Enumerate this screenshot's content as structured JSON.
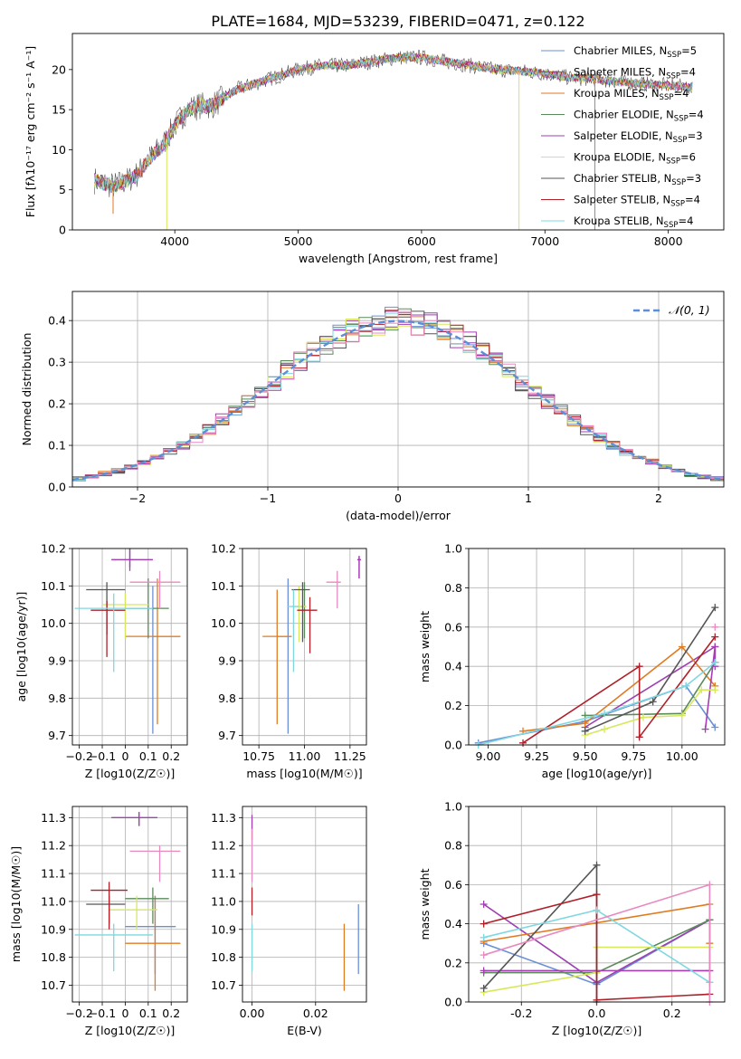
{
  "figure_title": "PLATE=1684, MJD=53239, FIBERID=0471, z=0.122",
  "series_colors": [
    "#6b8fd6",
    "#9e3fb0",
    "#e07b22",
    "#5a8a5a",
    "#a63db5",
    "#d7e85a",
    "#555555",
    "#b01f28",
    "#7fd8e0",
    "#e88ac0"
  ],
  "chart_data": [
    {
      "id": "spectrum",
      "type": "line",
      "title": "PLATE=1684, MJD=53239, FIBERID=0471, z=0.122",
      "xlabel": "wavelength [Angstrom, rest frame]",
      "ylabel": "Flux [fλ10⁻¹⁷ erg cm⁻² s⁻¹ A⁻¹]",
      "xlim": [
        3170,
        8450
      ],
      "ylim": [
        0,
        24.5
      ],
      "xticks": [
        4000,
        5000,
        6000,
        7000,
        8000
      ],
      "yticks": [
        0,
        5,
        10,
        15,
        20
      ],
      "grid": false,
      "legend_position": "right",
      "legend": [
        "Chabrier MILES, N_SSP=5",
        "Salpeter MILES, N_SSP=4",
        "Kroupa MILES, N_SSP=4",
        "Chabrier ELODIE, N_SSP=4",
        "Salpeter ELODIE, N_SSP=3",
        "Kroupa ELODIE, N_SSP=6",
        "Chabrier STELIB, N_SSP=3",
        "Salpeter STELIB, N_SSP=4",
        "Kroupa STELIB, N_SSP=4"
      ],
      "continuum": {
        "x": [
          3350,
          3500,
          3600,
          3700,
          3800,
          3900,
          4000,
          4100,
          4200,
          4300,
          4400,
          4500,
          4600,
          4700,
          4800,
          4900,
          5000,
          5200,
          5400,
          5600,
          5800,
          6000,
          6200,
          6400,
          6600,
          6800,
          7000,
          7200,
          7400,
          7600,
          7800,
          8000,
          8200
        ],
        "y": [
          6.2,
          5.5,
          6.0,
          7.0,
          9.0,
          10.5,
          13.0,
          15.0,
          15.5,
          15.5,
          16.5,
          17.5,
          18.0,
          18.5,
          19.0,
          19.5,
          20.0,
          20.5,
          20.5,
          21.0,
          21.5,
          21.5,
          21.0,
          20.5,
          20.0,
          19.8,
          19.5,
          19.0,
          18.8,
          18.5,
          18.2,
          18.0,
          17.8
        ]
      }
    },
    {
      "id": "residuals",
      "type": "histogram",
      "xlabel": "(data-model)/error",
      "ylabel": "Normed distribution",
      "xlim": [
        -2.5,
        2.5
      ],
      "ylim": [
        0,
        0.47
      ],
      "xticks": [
        -2,
        -1,
        0,
        1,
        2
      ],
      "yticks": [
        0.0,
        0.1,
        0.2,
        0.3,
        0.4
      ],
      "grid": true,
      "legend": [
        "𝒩(0, 1)"
      ],
      "legend_position": "top-right",
      "bin_width": 0.1
    },
    {
      "id": "age_vs_Z",
      "type": "errorbar",
      "xlabel": "Z [log10(Z/Z☉)]",
      "ylabel": "age [log10(age/yr)]",
      "xlim": [
        -0.23,
        0.27
      ],
      "ylim": [
        9.675,
        10.2
      ],
      "xticks": [
        -0.2,
        -0.1,
        0.0,
        0.1,
        0.2
      ],
      "yticks": [
        9.7,
        9.8,
        9.9,
        10.0,
        10.1,
        10.2
      ],
      "grid": true,
      "points": [
        {
          "x": 0.12,
          "y": 9.965,
          "xl": 0.12,
          "xh": 0.24,
          "yl": 9.705,
          "yh": 10.1
        },
        {
          "x": 0.02,
          "y": 10.17,
          "xl": -0.06,
          "xh": 0.12,
          "yl": 10.15,
          "yh": 10.2
        },
        {
          "x": 0.14,
          "y": 9.965,
          "xl": 0.0,
          "xh": 0.24,
          "yl": 9.73,
          "yh": 10.12
        },
        {
          "x": 0.1,
          "y": 10.04,
          "xl": 0.0,
          "xh": 0.19,
          "yl": 9.96,
          "yh": 10.12
        },
        {
          "x": 0.02,
          "y": 10.17,
          "xl": -0.06,
          "xh": 0.12,
          "yl": 10.14,
          "yh": 10.2
        },
        {
          "x": 0.0,
          "y": 10.05,
          "xl": -0.1,
          "xh": 0.1,
          "yl": 9.96,
          "yh": 10.08
        },
        {
          "x": -0.08,
          "y": 10.09,
          "xl": -0.17,
          "xh": 0.0,
          "yl": 9.97,
          "yh": 10.11
        },
        {
          "x": -0.08,
          "y": 10.035,
          "xl": -0.15,
          "xh": 0.0,
          "yl": 9.91,
          "yh": 10.06
        },
        {
          "x": -0.05,
          "y": 10.04,
          "xl": -0.22,
          "xh": 0.12,
          "yl": 9.87,
          "yh": 10.08
        },
        {
          "x": 0.15,
          "y": 10.11,
          "xl": 0.02,
          "xh": 0.24,
          "yl": 10.04,
          "yh": 10.14
        }
      ]
    },
    {
      "id": "age_vs_mass",
      "type": "errorbar",
      "xlabel": "mass [log10(M/M☉)]",
      "ylabel": "",
      "xlim": [
        10.66,
        11.34
      ],
      "ylim": [
        9.675,
        10.2
      ],
      "xticks": [
        10.75,
        11.0,
        11.25
      ],
      "yticks": [
        9.7,
        9.8,
        9.9,
        10.0,
        10.1,
        10.2
      ],
      "grid": true,
      "points": [
        {
          "x": 10.91,
          "y": 9.965,
          "xl": 10.85,
          "xh": 10.93,
          "yl": 9.705,
          "yh": 10.12
        },
        {
          "x": 11.3,
          "y": 10.17,
          "xl": 11.29,
          "xh": 11.31,
          "yl": 10.12,
          "yh": 10.18
        },
        {
          "x": 10.85,
          "y": 9.965,
          "xl": 10.77,
          "xh": 10.93,
          "yl": 9.73,
          "yh": 10.09
        },
        {
          "x": 11.0,
          "y": 10.045,
          "xl": 10.98,
          "xh": 11.01,
          "yl": 9.96,
          "yh": 10.11
        },
        {
          "x": 11.3,
          "y": 10.17,
          "xl": 11.29,
          "xh": 11.31,
          "yl": 10.12,
          "yh": 10.18
        },
        {
          "x": 10.97,
          "y": 10.045,
          "xl": 10.93,
          "xh": 11.01,
          "yl": 9.95,
          "yh": 10.1
        },
        {
          "x": 10.99,
          "y": 10.09,
          "xl": 10.93,
          "xh": 11.03,
          "yl": 9.95,
          "yh": 10.11
        },
        {
          "x": 11.03,
          "y": 10.035,
          "xl": 10.96,
          "xh": 11.07,
          "yl": 9.92,
          "yh": 10.07
        },
        {
          "x": 10.94,
          "y": 10.045,
          "xl": 10.91,
          "xh": 10.97,
          "yl": 9.87,
          "yh": 10.09
        },
        {
          "x": 11.18,
          "y": 10.11,
          "xl": 11.12,
          "xh": 11.2,
          "yl": 10.04,
          "yh": 10.14
        }
      ]
    },
    {
      "id": "massweight_vs_age",
      "type": "line",
      "xlabel": "age [log10(age/yr)]",
      "ylabel": "mass weight",
      "xlim": [
        8.9,
        10.22
      ],
      "ylim": [
        0,
        1
      ],
      "xticks": [
        9.0,
        9.25,
        9.5,
        9.75,
        10.0
      ],
      "yticks": [
        0.0,
        0.2,
        0.4,
        0.6,
        0.8,
        1.0
      ],
      "grid": true,
      "series": [
        {
          "x": [
            8.95,
            9.5,
            10.02,
            10.17
          ],
          "y": [
            0.01,
            0.12,
            0.3,
            0.09
          ]
        },
        {
          "x": [
            9.5,
            10.17,
            10.17,
            10.17
          ],
          "y": [
            0.09,
            0.5,
            0.42,
            0.4
          ]
        },
        {
          "x": [
            9.18,
            9.5,
            10.0,
            10.17
          ],
          "y": [
            0.07,
            0.11,
            0.5,
            0.3
          ]
        },
        {
          "x": [
            9.5,
            10.0,
            10.17
          ],
          "y": [
            0.15,
            0.16,
            0.42
          ]
        },
        {
          "x": [
            10.12,
            10.17,
            10.17
          ],
          "y": [
            0.08,
            0.5,
            0.42
          ]
        },
        {
          "x": [
            9.5,
            9.6,
            9.8,
            10.0,
            10.1,
            10.17
          ],
          "y": [
            0.05,
            0.08,
            0.14,
            0.15,
            0.28,
            0.28
          ]
        },
        {
          "x": [
            9.5,
            9.85,
            10.17
          ],
          "y": [
            0.07,
            0.22,
            0.7
          ]
        },
        {
          "x": [
            9.18,
            9.78,
            9.78,
            10.17
          ],
          "y": [
            0.01,
            0.4,
            0.04,
            0.55
          ]
        },
        {
          "x": [
            8.95,
            9.6,
            10.02,
            10.17
          ],
          "y": [
            0.0,
            0.16,
            0.3,
            0.42
          ]
        },
        {
          "x": [
            10.17
          ],
          "y": [
            0.6
          ]
        }
      ]
    },
    {
      "id": "mass_vs_Z",
      "type": "errorbar",
      "xlabel": "Z [log10(Z/Z☉)]",
      "ylabel": "mass [log10(M/M☉)]",
      "xlim": [
        -0.23,
        0.27
      ],
      "ylim": [
        10.64,
        11.34
      ],
      "xticks": [
        -0.2,
        -0.1,
        0.0,
        0.1,
        0.2
      ],
      "yticks": [
        10.7,
        10.8,
        10.9,
        11.0,
        11.1,
        11.2,
        11.3
      ],
      "grid": true,
      "points": [
        {
          "x": 0.13,
          "y": 10.91,
          "xl": 0.0,
          "xh": 0.22,
          "yl": 10.74,
          "yh": 11.02
        },
        {
          "x": 0.06,
          "y": 11.3,
          "xl": -0.06,
          "xh": 0.14,
          "yl": 11.27,
          "yh": 11.32
        },
        {
          "x": 0.13,
          "y": 10.85,
          "xl": -0.0,
          "xh": 0.24,
          "yl": 10.68,
          "yh": 11.02
        },
        {
          "x": 0.12,
          "y": 11.01,
          "xl": 0.0,
          "xh": 0.19,
          "yl": 10.92,
          "yh": 11.05
        },
        {
          "x": 0.06,
          "y": 11.3,
          "xl": -0.06,
          "xh": 0.14,
          "yl": 11.27,
          "yh": 11.32
        },
        {
          "x": 0.05,
          "y": 10.97,
          "xl": -0.07,
          "xh": 0.14,
          "yl": 10.9,
          "yh": 11.02
        },
        {
          "x": -0.07,
          "y": 10.99,
          "xl": -0.17,
          "xh": 0.0,
          "yl": 10.92,
          "yh": 11.02
        },
        {
          "x": -0.07,
          "y": 11.04,
          "xl": -0.15,
          "xh": 0.01,
          "yl": 10.9,
          "yh": 11.07
        },
        {
          "x": -0.05,
          "y": 10.88,
          "xl": -0.22,
          "xh": 0.12,
          "yl": 10.75,
          "yh": 10.92
        },
        {
          "x": 0.15,
          "y": 11.18,
          "xl": 0.02,
          "xh": 0.24,
          "yl": 11.07,
          "yh": 11.2
        }
      ]
    },
    {
      "id": "mass_vs_EBV",
      "type": "errorbar",
      "xlabel": "E(B-V)",
      "ylabel": "",
      "xlim": [
        -0.003,
        0.036
      ],
      "ylim": [
        10.64,
        11.34
      ],
      "xticks": [
        0.0,
        0.02
      ],
      "yticks": [
        10.7,
        10.8,
        10.9,
        11.0,
        11.1,
        11.2,
        11.3
      ],
      "grid": true,
      "points": [
        {
          "x": 0.0,
          "y": 11.27,
          "xl": 0.0,
          "xh": 0.0,
          "yl": 11.22,
          "yh": 11.31
        },
        {
          "x": 0.0,
          "y": 11.2,
          "xl": 0.0,
          "xh": 0.0,
          "yl": 11.07,
          "yh": 11.26
        },
        {
          "x": 0.0,
          "y": 11.0,
          "xl": 0.0,
          "xh": 0.0,
          "yl": 10.95,
          "yh": 11.05
        },
        {
          "x": 0.0,
          "y": 10.9,
          "xl": 0.0,
          "xh": 0.0,
          "yl": 10.75,
          "yh": 10.92
        },
        {
          "x": 0.029,
          "y": 10.85,
          "xl": 0.029,
          "xh": 0.029,
          "yl": 10.68,
          "yh": 10.92
        },
        {
          "x": 0.0335,
          "y": 10.9,
          "xl": 0.0335,
          "xh": 0.0335,
          "yl": 10.74,
          "yh": 10.99
        }
      ]
    },
    {
      "id": "massweight_vs_Z",
      "type": "line",
      "xlabel": "Z [log10(Z/Z☉)]",
      "ylabel": "mass weight",
      "xlim": [
        -0.34,
        0.34
      ],
      "ylim": [
        0,
        1
      ],
      "xticks": [
        -0.2,
        0.0,
        0.2
      ],
      "yticks": [
        0.0,
        0.2,
        0.4,
        0.6,
        0.8,
        1.0
      ],
      "grid": true,
      "series": [
        {
          "x": [
            -0.3,
            0.0,
            0.3,
            0.3
          ],
          "y": [
            0.3,
            0.09,
            0.42,
            0.1
          ]
        },
        {
          "x": [
            -0.3,
            0.0,
            0.3
          ],
          "y": [
            0.5,
            0.1,
            0.42
          ]
        },
        {
          "x": [
            -0.3,
            0.3,
            0.3
          ],
          "y": [
            0.31,
            0.5,
            0.3
          ]
        },
        {
          "x": [
            -0.3,
            0.0,
            0.3
          ],
          "y": [
            0.15,
            0.15,
            0.42
          ]
        },
        {
          "x": [
            -0.3,
            0.0,
            0.3
          ],
          "y": [
            0.16,
            0.16,
            0.16
          ]
        },
        {
          "x": [
            -0.3,
            0.0,
            0.0,
            0.3
          ],
          "y": [
            0.05,
            0.15,
            0.28,
            0.28
          ]
        },
        {
          "x": [
            -0.3,
            0.0,
            0.0
          ],
          "y": [
            0.07,
            0.7,
            0.0
          ]
        },
        {
          "x": [
            -0.3,
            0.0,
            0.0,
            0.3
          ],
          "y": [
            0.4,
            0.55,
            0.01,
            0.04
          ]
        },
        {
          "x": [
            -0.3,
            0.0,
            0.3
          ],
          "y": [
            0.33,
            0.47,
            0.1
          ]
        },
        {
          "x": [
            -0.3,
            0.3,
            0.3
          ],
          "y": [
            0.24,
            0.6,
            0.0
          ]
        }
      ]
    }
  ]
}
